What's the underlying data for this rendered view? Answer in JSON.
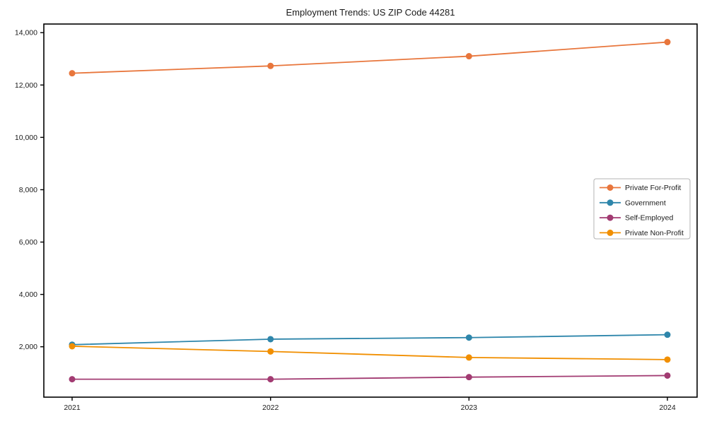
{
  "window": {
    "background": "#ffffff",
    "text_color": "#1a1a1a",
    "axis_color": "#000000",
    "legend_border_color": "#b3b3b3"
  },
  "chart_data": {
    "type": "line",
    "title": "Employment Trends: US ZIP Code 44281",
    "categories": [
      "2021",
      "2022",
      "2023",
      "2024"
    ],
    "series": [
      {
        "name": "Private For-Profit",
        "color": "#E8763C",
        "values": [
          12450,
          12730,
          13100,
          13640
        ]
      },
      {
        "name": "Government",
        "color": "#2E86AB",
        "values": [
          2080,
          2290,
          2350,
          2460
        ]
      },
      {
        "name": "Self-Employed",
        "color": "#A23B72",
        "values": [
          760,
          760,
          840,
          900
        ]
      },
      {
        "name": "Private Non-Profit",
        "color": "#F18F01",
        "values": [
          2020,
          1820,
          1590,
          1510
        ]
      }
    ],
    "xlabel": "",
    "ylabel": "",
    "ylim": [
      75,
      14330
    ],
    "yticks": [
      {
        "value": 2000,
        "label": "2,000"
      },
      {
        "value": 4000,
        "label": "4,000"
      },
      {
        "value": 6000,
        "label": "6,000"
      },
      {
        "value": 8000,
        "label": "8,000"
      },
      {
        "value": 10000,
        "label": "10,000"
      },
      {
        "value": 12000,
        "label": "12,000"
      },
      {
        "value": 14000,
        "label": "14,000"
      }
    ],
    "grid": false,
    "marker": "circle",
    "legend_position": "center-right"
  }
}
